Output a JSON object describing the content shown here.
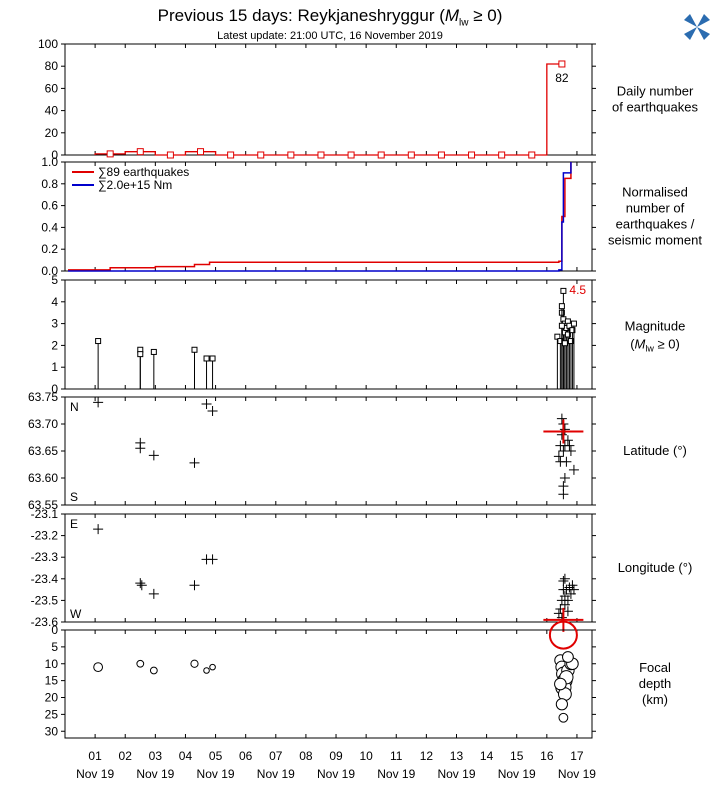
{
  "header": {
    "title_prefix": "Previous 15 days: Reykjaneshryggur (",
    "title_var": "M",
    "title_sub": "lw",
    "title_suffix": " ≥ 0)",
    "subtitle": "Latest update: 21:00 UTC, 16 November 2019"
  },
  "colors": {
    "count": "#e00000",
    "moment": "#0000cc",
    "marker": "#000000",
    "highlight": "#e00000",
    "logo": "#2b6cb0"
  },
  "chart_data": {
    "type": "multi-panel time series",
    "x_axis": {
      "range": [
        "2019-11-00",
        "2019-11-17.5"
      ],
      "ticks": [
        "01",
        "02",
        "03",
        "04",
        "05",
        "06",
        "07",
        "08",
        "09",
        "10",
        "11",
        "12",
        "13",
        "14",
        "15",
        "16",
        "17"
      ],
      "tick_sublabel": "Nov 19",
      "sublabel_every": 2
    },
    "panels": [
      {
        "id": "daily",
        "label_lines": [
          "Daily number",
          "of earthquakes"
        ],
        "ylim": [
          0,
          100
        ],
        "yticks": [
          0,
          20,
          40,
          60,
          80,
          100
        ],
        "days": [
          1,
          2,
          3,
          4,
          5,
          6,
          7,
          8,
          9,
          10,
          11,
          12,
          13,
          14,
          15,
          16
        ],
        "counts": [
          1,
          3,
          0,
          3,
          0,
          0,
          0,
          0,
          0,
          0,
          0,
          0,
          0,
          0,
          0,
          82
        ],
        "peak_label": "82"
      },
      {
        "id": "cumulative",
        "label_lines": [
          "Normalised",
          "number of",
          "earthquakes /",
          "seismic moment"
        ],
        "ylim": [
          0,
          1
        ],
        "yticks": [
          "0.0",
          "0.2",
          "0.4",
          "0.6",
          "0.8",
          "1.0"
        ],
        "legend": [
          {
            "sym": "∑",
            "text": "89 earthquakes"
          },
          {
            "sym": "∑",
            "text": "2.0e+15 Nm"
          }
        ],
        "count_steps": [
          [
            0.1,
            0.01
          ],
          [
            1.5,
            0.03
          ],
          [
            3.0,
            0.04
          ],
          [
            4.3,
            0.06
          ],
          [
            4.8,
            0.08
          ],
          [
            16.4,
            0.09
          ],
          [
            16.5,
            0.5
          ],
          [
            16.6,
            0.85
          ],
          [
            16.8,
            1.0
          ]
        ],
        "moment_steps": [
          [
            0.1,
            0.0
          ],
          [
            16.4,
            0.01
          ],
          [
            16.5,
            0.45
          ],
          [
            16.55,
            0.9
          ],
          [
            16.8,
            1.0
          ]
        ]
      },
      {
        "id": "magnitude",
        "label_lines": [
          "Magnitude",
          "(M",
          "lw",
          " ≥ 0)"
        ],
        "ylim": [
          0,
          5
        ],
        "yticks": [
          0,
          1,
          2,
          3,
          4,
          5
        ],
        "points": [
          [
            1.1,
            2.2
          ],
          [
            2.5,
            1.8
          ],
          [
            2.5,
            1.6
          ],
          [
            2.95,
            1.7
          ],
          [
            4.3,
            1.8
          ],
          [
            4.7,
            1.4
          ],
          [
            4.9,
            1.4
          ],
          [
            16.35,
            2.4
          ],
          [
            16.45,
            2.2
          ],
          [
            16.5,
            3.5
          ],
          [
            16.55,
            4.5
          ],
          [
            16.5,
            3.8
          ],
          [
            16.55,
            3.2
          ],
          [
            16.6,
            3.0
          ],
          [
            16.6,
            2.6
          ],
          [
            16.65,
            2.8
          ],
          [
            16.7,
            3.1
          ],
          [
            16.7,
            2.5
          ],
          [
            16.75,
            2.9
          ],
          [
            16.8,
            2.2
          ],
          [
            16.85,
            2.7
          ],
          [
            16.9,
            3.0
          ],
          [
            16.6,
            2.1
          ],
          [
            16.5,
            2.9
          ]
        ],
        "max_label": "4.5"
      },
      {
        "id": "latitude",
        "label_lines": [
          "Latitude (°)"
        ],
        "ylim": [
          63.55,
          63.75
        ],
        "yticks": [
          "63.55",
          "63.60",
          "63.65",
          "63.70",
          "63.75"
        ],
        "top_mark": "N",
        "bottom_mark": "S",
        "points": [
          [
            1.1,
            63.74
          ],
          [
            2.5,
            63.665
          ],
          [
            2.5,
            63.655
          ],
          [
            2.95,
            63.642
          ],
          [
            4.3,
            63.628
          ],
          [
            4.7,
            63.737
          ],
          [
            4.9,
            63.724
          ],
          [
            16.4,
            63.64
          ],
          [
            16.45,
            63.66
          ],
          [
            16.5,
            63.68
          ],
          [
            16.55,
            63.7
          ],
          [
            16.5,
            63.71
          ],
          [
            16.55,
            63.65
          ],
          [
            16.6,
            63.66
          ],
          [
            16.6,
            63.6
          ],
          [
            16.55,
            63.585
          ],
          [
            16.55,
            63.57
          ],
          [
            16.65,
            63.63
          ],
          [
            16.7,
            63.67
          ],
          [
            16.75,
            63.66
          ],
          [
            16.8,
            63.65
          ],
          [
            16.9,
            63.615
          ],
          [
            16.6,
            63.69
          ],
          [
            16.45,
            63.63
          ]
        ],
        "highlight": [
          16.55,
          63.686
        ]
      },
      {
        "id": "longitude",
        "label_lines": [
          "Longitude (°)"
        ],
        "ylim": [
          -23.6,
          -23.1
        ],
        "yticks": [
          "-23.6",
          "-23.5",
          "-23.4",
          "-23.3",
          "-23.2",
          "-23.1"
        ],
        "top_mark": "E",
        "bottom_mark": "W",
        "points": [
          [
            1.1,
            -23.17
          ],
          [
            2.5,
            -23.42
          ],
          [
            2.55,
            -23.43
          ],
          [
            2.95,
            -23.47
          ],
          [
            4.3,
            -23.43
          ],
          [
            4.7,
            -23.31
          ],
          [
            4.9,
            -23.31
          ],
          [
            16.4,
            -23.56
          ],
          [
            16.45,
            -23.54
          ],
          [
            16.5,
            -23.5
          ],
          [
            16.55,
            -23.45
          ],
          [
            16.55,
            -23.41
          ],
          [
            16.6,
            -23.48
          ],
          [
            16.6,
            -23.52
          ],
          [
            16.65,
            -23.45
          ],
          [
            16.7,
            -23.5
          ],
          [
            16.75,
            -23.44
          ],
          [
            16.8,
            -23.47
          ],
          [
            16.85,
            -23.43
          ],
          [
            16.9,
            -23.45
          ],
          [
            16.5,
            -23.58
          ],
          [
            16.6,
            -23.4
          ],
          [
            16.7,
            -23.55
          ]
        ],
        "highlight": [
          16.55,
          -23.59
        ]
      },
      {
        "id": "depth",
        "label_lines": [
          "Focal",
          "depth",
          "(km)"
        ],
        "ylim": [
          0,
          32
        ],
        "yticks": [
          0,
          5,
          10,
          15,
          20,
          25,
          30
        ],
        "points": [
          [
            1.1,
            11,
            2.2
          ],
          [
            2.5,
            10,
            1.7
          ],
          [
            2.95,
            12,
            1.7
          ],
          [
            4.3,
            10,
            1.8
          ],
          [
            4.7,
            12,
            1.4
          ],
          [
            4.9,
            11,
            1.4
          ],
          [
            16.45,
            9,
            2.8
          ],
          [
            16.5,
            11,
            3.0
          ],
          [
            16.55,
            13,
            3.4
          ],
          [
            16.6,
            15,
            3.6
          ],
          [
            16.55,
            17,
            3.8
          ],
          [
            16.6,
            19,
            3.2
          ],
          [
            16.5,
            22,
            2.8
          ],
          [
            16.55,
            26,
            2.2
          ],
          [
            16.7,
            12,
            3.1
          ],
          [
            16.8,
            10,
            3.0
          ],
          [
            16.85,
            10,
            2.9
          ],
          [
            16.65,
            14,
            3.3
          ],
          [
            16.7,
            8,
            2.7
          ],
          [
            16.45,
            16,
            2.9
          ]
        ],
        "highlight": [
          16.55,
          1.5,
          4.5
        ]
      }
    ]
  }
}
